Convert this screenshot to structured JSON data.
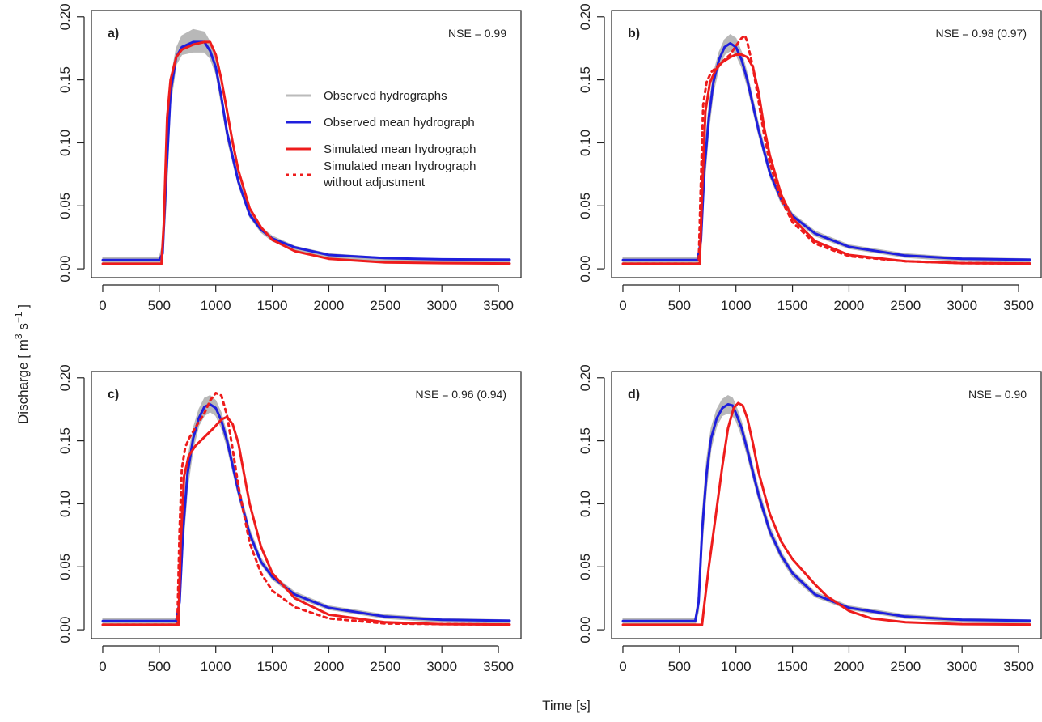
{
  "figure": {
    "xlabel": "Time [s]",
    "ylabel_parts": [
      "Discharge [ m",
      "3",
      " s",
      "−1",
      " ]"
    ]
  },
  "legend": {
    "panel": 0,
    "entries": [
      {
        "label": "Observed hydrographs",
        "color": "#bbbbbb",
        "dash": false
      },
      {
        "label": "Observed mean hydrograph",
        "color": "#1f1fdd",
        "dash": false
      },
      {
        "label": "Simulated mean hydrograph",
        "color": "#ee1c1c",
        "dash": false
      },
      {
        "label": "Simulated mean hydrograph",
        "label2": "without adjustment",
        "color": "#ee1c1c",
        "dash": true
      }
    ]
  },
  "colors": {
    "observed_band": "#b8b8b8",
    "observed_mean": "#1f1fdd",
    "simulated": "#ee1c1c"
  },
  "chart_data": [
    {
      "type": "line",
      "panel_label": "a)",
      "annotation": "NSE = 0.99",
      "xlim": [
        -100,
        3700
      ],
      "ylim": [
        -0.007,
        0.205
      ],
      "xticks": [
        0,
        500,
        1000,
        1500,
        2000,
        2500,
        3000,
        3500
      ],
      "xtick_labels": [
        "0",
        "500",
        "1000",
        "1500",
        "2000",
        "2500",
        "3000",
        "3500"
      ],
      "yticks": [
        0.0,
        0.05,
        0.1,
        0.15,
        0.2
      ],
      "ytick_labels": [
        "0.00",
        "0.05",
        "0.10",
        "0.15",
        "0.20"
      ],
      "observed_band": {
        "x": [
          0,
          500,
          530,
          560,
          600,
          650,
          700,
          800,
          900,
          950,
          1000,
          1050,
          1100,
          1200,
          1300,
          1400,
          1500,
          1700,
          2000,
          2500,
          3000,
          3600
        ],
        "upper": [
          0.009,
          0.009,
          0.02,
          0.08,
          0.15,
          0.175,
          0.185,
          0.19,
          0.188,
          0.18,
          0.165,
          0.14,
          0.112,
          0.072,
          0.046,
          0.033,
          0.026,
          0.018,
          0.012,
          0.009,
          0.008,
          0.008
        ],
        "lower": [
          0.004,
          0.004,
          0.008,
          0.05,
          0.13,
          0.162,
          0.17,
          0.172,
          0.172,
          0.167,
          0.155,
          0.13,
          0.103,
          0.066,
          0.041,
          0.029,
          0.022,
          0.015,
          0.009,
          0.006,
          0.005,
          0.005
        ]
      },
      "series": [
        {
          "name": "Observed mean hydrograph",
          "color": "#1f1fdd",
          "dash": false,
          "x": [
            0,
            500,
            530,
            560,
            600,
            650,
            700,
            800,
            900,
            950,
            1000,
            1050,
            1100,
            1200,
            1300,
            1400,
            1500,
            1700,
            2000,
            2500,
            3000,
            3600
          ],
          "y": [
            0.007,
            0.007,
            0.012,
            0.07,
            0.14,
            0.168,
            0.176,
            0.18,
            0.18,
            0.173,
            0.16,
            0.136,
            0.108,
            0.069,
            0.043,
            0.031,
            0.024,
            0.017,
            0.011,
            0.0085,
            0.0075,
            0.0072
          ]
        },
        {
          "name": "Simulated mean hydrograph",
          "color": "#ee1c1c",
          "dash": false,
          "x": [
            0,
            520,
            540,
            570,
            600,
            650,
            700,
            800,
            900,
            950,
            1000,
            1050,
            1100,
            1150,
            1200,
            1300,
            1400,
            1500,
            1700,
            2000,
            2500,
            3000,
            3600
          ],
          "y": [
            0.004,
            0.004,
            0.035,
            0.12,
            0.15,
            0.168,
            0.174,
            0.178,
            0.18,
            0.18,
            0.17,
            0.15,
            0.125,
            0.1,
            0.078,
            0.048,
            0.033,
            0.023,
            0.014,
            0.008,
            0.005,
            0.0045,
            0.0042
          ]
        }
      ]
    },
    {
      "type": "line",
      "panel_label": "b)",
      "annotation": "NSE = 0.98 (0.97)",
      "xlim": [
        -100,
        3700
      ],
      "ylim": [
        -0.007,
        0.205
      ],
      "xticks": [
        0,
        500,
        1000,
        1500,
        2000,
        2500,
        3000,
        3500
      ],
      "xtick_labels": [
        "0",
        "500",
        "1000",
        "1500",
        "2000",
        "2500",
        "3000",
        "3500"
      ],
      "yticks": [
        0.0,
        0.05,
        0.1,
        0.15,
        0.2
      ],
      "ytick_labels": [
        "0.00",
        "0.05",
        "0.10",
        "0.15",
        "0.20"
      ],
      "observed_band": {
        "x": [
          0,
          660,
          690,
          720,
          760,
          800,
          850,
          900,
          950,
          1000,
          1050,
          1100,
          1200,
          1300,
          1400,
          1500,
          1700,
          2000,
          2500,
          3000,
          3600
        ],
        "upper": [
          0.009,
          0.009,
          0.03,
          0.09,
          0.13,
          0.155,
          0.172,
          0.182,
          0.186,
          0.183,
          0.172,
          0.155,
          0.115,
          0.08,
          0.058,
          0.044,
          0.03,
          0.019,
          0.012,
          0.009,
          0.008
        ],
        "lower": [
          0.004,
          0.004,
          0.015,
          0.065,
          0.11,
          0.14,
          0.16,
          0.17,
          0.173,
          0.17,
          0.16,
          0.145,
          0.106,
          0.073,
          0.052,
          0.04,
          0.026,
          0.016,
          0.009,
          0.006,
          0.005
        ]
      },
      "series": [
        {
          "name": "Observed mean hydrograph",
          "color": "#1f1fdd",
          "dash": false,
          "x": [
            0,
            660,
            690,
            720,
            760,
            800,
            850,
            900,
            950,
            1000,
            1050,
            1100,
            1200,
            1300,
            1400,
            1500,
            1700,
            2000,
            2500,
            3000,
            3600
          ],
          "y": [
            0.007,
            0.007,
            0.022,
            0.078,
            0.12,
            0.148,
            0.166,
            0.176,
            0.179,
            0.176,
            0.166,
            0.15,
            0.11,
            0.076,
            0.055,
            0.042,
            0.028,
            0.0175,
            0.0105,
            0.008,
            0.0072
          ]
        },
        {
          "name": "Simulated mean hydrograph",
          "color": "#ee1c1c",
          "dash": false,
          "x": [
            0,
            680,
            700,
            730,
            770,
            820,
            880,
            950,
            1000,
            1050,
            1100,
            1150,
            1200,
            1250,
            1300,
            1400,
            1500,
            1700,
            2000,
            2500,
            3000,
            3600
          ],
          "y": [
            0.004,
            0.004,
            0.06,
            0.125,
            0.148,
            0.158,
            0.164,
            0.168,
            0.17,
            0.17,
            0.168,
            0.16,
            0.14,
            0.112,
            0.09,
            0.059,
            0.04,
            0.022,
            0.011,
            0.006,
            0.0045,
            0.0042
          ]
        },
        {
          "name": "Simulated mean hydrograph without adjustment",
          "color": "#ee1c1c",
          "dash": true,
          "x": [
            0,
            670,
            690,
            710,
            740,
            780,
            850,
            950,
            1000,
            1050,
            1080,
            1100,
            1150,
            1200,
            1250,
            1300,
            1400,
            1500,
            1700,
            2000,
            2500,
            3000,
            3600
          ],
          "y": [
            0.004,
            0.004,
            0.07,
            0.13,
            0.148,
            0.156,
            0.162,
            0.17,
            0.177,
            0.183,
            0.185,
            0.18,
            0.16,
            0.133,
            0.106,
            0.084,
            0.055,
            0.037,
            0.02,
            0.01,
            0.006,
            0.0045,
            0.0042
          ]
        }
      ]
    },
    {
      "type": "line",
      "panel_label": "c)",
      "annotation": "NSE = 0.96 (0.94)",
      "xlim": [
        -100,
        3700
      ],
      "ylim": [
        -0.007,
        0.205
      ],
      "xticks": [
        0,
        500,
        1000,
        1500,
        2000,
        2500,
        3000,
        3500
      ],
      "xtick_labels": [
        "0",
        "500",
        "1000",
        "1500",
        "2000",
        "2500",
        "3000",
        "3500"
      ],
      "yticks": [
        0.0,
        0.05,
        0.1,
        0.15,
        0.2
      ],
      "ytick_labels": [
        "0.00",
        "0.05",
        "0.10",
        "0.15",
        "0.20"
      ],
      "observed_band": {
        "x": [
          0,
          650,
          680,
          710,
          750,
          800,
          850,
          900,
          950,
          1000,
          1050,
          1100,
          1200,
          1300,
          1400,
          1500,
          1700,
          2000,
          2500,
          3000,
          3600
        ],
        "upper": [
          0.009,
          0.009,
          0.03,
          0.09,
          0.135,
          0.16,
          0.175,
          0.184,
          0.186,
          0.182,
          0.172,
          0.155,
          0.115,
          0.08,
          0.057,
          0.044,
          0.03,
          0.019,
          0.012,
          0.009,
          0.008
        ],
        "lower": [
          0.004,
          0.004,
          0.015,
          0.065,
          0.112,
          0.144,
          0.162,
          0.17,
          0.173,
          0.17,
          0.16,
          0.145,
          0.106,
          0.073,
          0.052,
          0.04,
          0.026,
          0.016,
          0.009,
          0.006,
          0.005
        ]
      },
      "series": [
        {
          "name": "Observed mean hydrograph",
          "color": "#1f1fdd",
          "dash": false,
          "x": [
            0,
            650,
            680,
            710,
            750,
            800,
            850,
            900,
            950,
            1000,
            1050,
            1100,
            1200,
            1300,
            1400,
            1500,
            1700,
            2000,
            2500,
            3000,
            3600
          ],
          "y": [
            0.007,
            0.007,
            0.022,
            0.078,
            0.124,
            0.152,
            0.168,
            0.177,
            0.179,
            0.176,
            0.166,
            0.15,
            0.11,
            0.076,
            0.054,
            0.042,
            0.028,
            0.0175,
            0.0105,
            0.008,
            0.0072
          ]
        },
        {
          "name": "Simulated mean hydrograph",
          "color": "#ee1c1c",
          "dash": false,
          "x": [
            0,
            670,
            690,
            720,
            760,
            820,
            900,
            980,
            1050,
            1100,
            1150,
            1200,
            1250,
            1300,
            1400,
            1500,
            1700,
            2000,
            2500,
            3000,
            3600
          ],
          "y": [
            0.004,
            0.004,
            0.07,
            0.122,
            0.138,
            0.146,
            0.153,
            0.16,
            0.167,
            0.169,
            0.163,
            0.148,
            0.124,
            0.1,
            0.066,
            0.045,
            0.025,
            0.012,
            0.006,
            0.0045,
            0.0042
          ]
        },
        {
          "name": "Simulated mean hydrograph without adjustment",
          "color": "#ee1c1c",
          "dash": true,
          "x": [
            0,
            660,
            680,
            700,
            730,
            770,
            830,
            900,
            950,
            1000,
            1050,
            1100,
            1150,
            1200,
            1300,
            1400,
            1500,
            1700,
            2000,
            2500,
            3000,
            3600
          ],
          "y": [
            0.004,
            0.004,
            0.08,
            0.128,
            0.145,
            0.153,
            0.162,
            0.172,
            0.182,
            0.188,
            0.186,
            0.17,
            0.143,
            0.114,
            0.069,
            0.045,
            0.031,
            0.018,
            0.009,
            0.005,
            0.0045,
            0.0042
          ]
        }
      ]
    },
    {
      "type": "line",
      "panel_label": "d)",
      "annotation": "NSE = 0.90",
      "xlim": [
        -100,
        3700
      ],
      "ylim": [
        -0.007,
        0.205
      ],
      "xticks": [
        0,
        500,
        1000,
        1500,
        2000,
        2500,
        3000,
        3500
      ],
      "xtick_labels": [
        "0",
        "500",
        "1000",
        "1500",
        "2000",
        "2500",
        "3000",
        "3500"
      ],
      "yticks": [
        0.0,
        0.05,
        0.1,
        0.15,
        0.2
      ],
      "ytick_labels": [
        "0.00",
        "0.05",
        "0.10",
        "0.15",
        "0.20"
      ],
      "observed_band": {
        "x": [
          0,
          640,
          670,
          700,
          740,
          780,
          830,
          880,
          930,
          970,
          1000,
          1050,
          1100,
          1200,
          1300,
          1400,
          1500,
          1700,
          2000,
          2500,
          3000,
          3600
        ],
        "upper": [
          0.009,
          0.009,
          0.03,
          0.09,
          0.135,
          0.16,
          0.175,
          0.183,
          0.186,
          0.184,
          0.178,
          0.165,
          0.148,
          0.112,
          0.082,
          0.062,
          0.047,
          0.03,
          0.019,
          0.012,
          0.009,
          0.008
        ],
        "lower": [
          0.004,
          0.004,
          0.015,
          0.065,
          0.112,
          0.144,
          0.162,
          0.17,
          0.172,
          0.17,
          0.166,
          0.154,
          0.138,
          0.103,
          0.075,
          0.056,
          0.042,
          0.026,
          0.016,
          0.009,
          0.006,
          0.005
        ]
      },
      "series": [
        {
          "name": "Observed mean hydrograph",
          "color": "#1f1fdd",
          "dash": false,
          "x": [
            0,
            640,
            670,
            700,
            740,
            780,
            830,
            880,
            930,
            970,
            1000,
            1050,
            1100,
            1200,
            1300,
            1400,
            1500,
            1700,
            2000,
            2500,
            3000,
            3600
          ],
          "y": [
            0.007,
            0.007,
            0.022,
            0.078,
            0.124,
            0.152,
            0.168,
            0.176,
            0.179,
            0.178,
            0.172,
            0.16,
            0.143,
            0.107,
            0.078,
            0.059,
            0.045,
            0.028,
            0.0175,
            0.0105,
            0.008,
            0.0072
          ]
        },
        {
          "name": "Simulated mean hydrograph",
          "color": "#ee1c1c",
          "dash": false,
          "x": [
            0,
            700,
            720,
            760,
            820,
            880,
            930,
            980,
            1020,
            1060,
            1100,
            1150,
            1200,
            1300,
            1400,
            1500,
            1600,
            1700,
            1800,
            2000,
            2200,
            2500,
            3000,
            3600
          ],
          "y": [
            0.004,
            0.004,
            0.02,
            0.05,
            0.09,
            0.13,
            0.16,
            0.176,
            0.18,
            0.178,
            0.168,
            0.148,
            0.125,
            0.092,
            0.07,
            0.056,
            0.046,
            0.036,
            0.027,
            0.015,
            0.009,
            0.006,
            0.0045,
            0.0042
          ]
        }
      ]
    }
  ]
}
